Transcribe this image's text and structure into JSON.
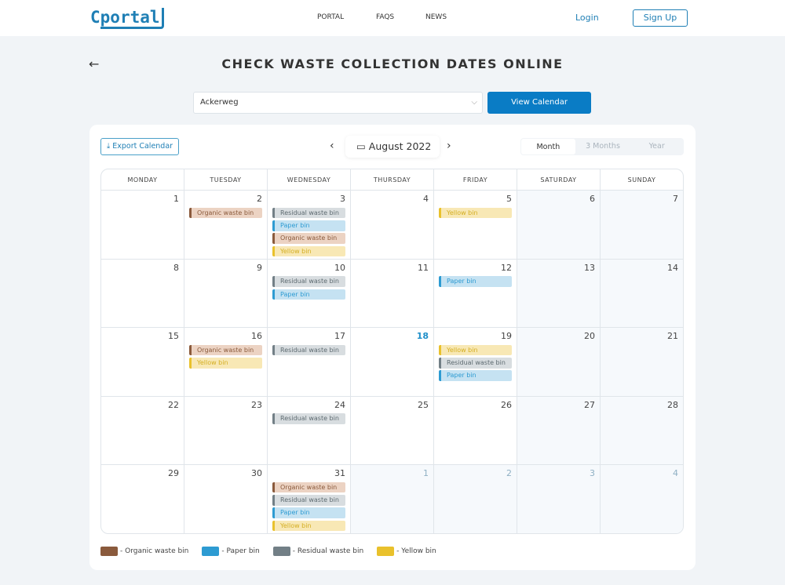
{
  "header": {
    "logo": "portal",
    "nav": [
      "PORTAL",
      "FAQS",
      "NEWS"
    ],
    "login": "Login",
    "signup": "Sign Up"
  },
  "page": {
    "title": "CHECK WASTE COLLECTION DATES ONLINE",
    "street": "Ackerweg",
    "view_calendar": "View Calendar"
  },
  "calendar": {
    "export": "Export Calendar",
    "month": "August 2022",
    "views": [
      "Month",
      "3 Months",
      "Year"
    ],
    "active_view": "Month",
    "weekdays": [
      "MONDAY",
      "TUESDAY",
      "WEDNESDAY",
      "THURSDAY",
      "FRIDAY",
      "SATURDAY",
      "SUNDAY"
    ],
    "bins": {
      "organic": "Organic waste bin",
      "paper": "Paper bin",
      "residual": "Residual waste bin",
      "yellow": "Yellow bin"
    },
    "colors": {
      "organic": "#8a5a3c",
      "paper": "#2d9bd2",
      "residual": "#727f86",
      "yellow": "#e9c12c"
    },
    "today": 18,
    "weeks": [
      [
        {
          "d": "1",
          "e": []
        },
        {
          "d": "2",
          "e": [
            "organic"
          ]
        },
        {
          "d": "3",
          "e": [
            "residual",
            "paper",
            "organic",
            "yellow"
          ]
        },
        {
          "d": "4",
          "e": []
        },
        {
          "d": "5",
          "e": [
            "yellow"
          ]
        },
        {
          "d": "6",
          "e": []
        },
        {
          "d": "7",
          "e": []
        }
      ],
      [
        {
          "d": "8",
          "e": []
        },
        {
          "d": "9",
          "e": []
        },
        {
          "d": "10",
          "e": [
            "residual",
            "paper"
          ]
        },
        {
          "d": "11",
          "e": []
        },
        {
          "d": "12",
          "e": [
            "paper"
          ]
        },
        {
          "d": "13",
          "e": []
        },
        {
          "d": "14",
          "e": []
        }
      ],
      [
        {
          "d": "15",
          "e": []
        },
        {
          "d": "16",
          "e": [
            "organic",
            "yellow"
          ]
        },
        {
          "d": "17",
          "e": [
            "residual"
          ]
        },
        {
          "d": "18",
          "e": []
        },
        {
          "d": "19",
          "e": [
            "yellow",
            "residual",
            "paper"
          ]
        },
        {
          "d": "20",
          "e": []
        },
        {
          "d": "21",
          "e": []
        }
      ],
      [
        {
          "d": "22",
          "e": []
        },
        {
          "d": "23",
          "e": []
        },
        {
          "d": "24",
          "e": [
            "residual"
          ]
        },
        {
          "d": "25",
          "e": []
        },
        {
          "d": "26",
          "e": []
        },
        {
          "d": "27",
          "e": []
        },
        {
          "d": "28",
          "e": []
        }
      ],
      [
        {
          "d": "29",
          "e": []
        },
        {
          "d": "30",
          "e": []
        },
        {
          "d": "31",
          "e": [
            "organic",
            "residual",
            "paper",
            "yellow"
          ]
        },
        {
          "d": "1",
          "e": [],
          "other": true
        },
        {
          "d": "2",
          "e": [],
          "other": true
        },
        {
          "d": "3",
          "e": [],
          "other": true
        },
        {
          "d": "4",
          "e": [],
          "other": true
        }
      ]
    ]
  },
  "legend": [
    {
      "key": "organic",
      "label": "- Organic waste bin"
    },
    {
      "key": "paper",
      "label": "- Paper bin"
    },
    {
      "key": "residual",
      "label": "- Residual waste bin"
    },
    {
      "key": "yellow",
      "label": "- Yellow bin"
    }
  ]
}
